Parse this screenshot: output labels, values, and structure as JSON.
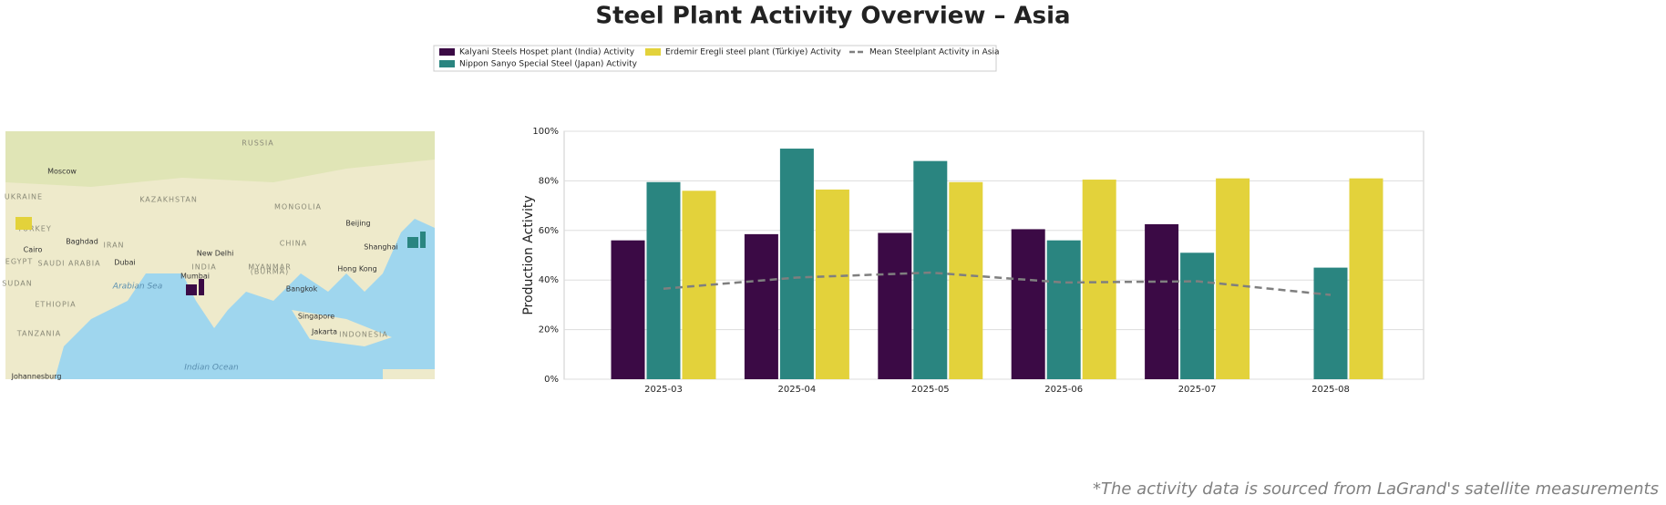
{
  "title": "Steel Plant Activity Overview – Asia",
  "note": "*The activity data is sourced from LaGrand's satellite measurements",
  "map": {
    "labels": [
      "RUSSIA",
      "Moscow",
      "UKRAINE",
      "KAZAKHSTAN",
      "MONGOLIA",
      "Beijing",
      "TURKEY",
      "Baghdad",
      "IRAN",
      "CHINA",
      "Shanghai",
      "Cairo",
      "EGYPT",
      "SAUDI ARABIA",
      "Dubai",
      "New Delhi",
      "INDIA",
      "MYANMAR",
      "(BURMA)",
      "Hong Kong",
      "Mumbai",
      "Arabian Sea",
      "Bangkok",
      "SUDAN",
      "ETHIOPIA",
      "Singapore",
      "Jakarta",
      "INDONESIA",
      "TANZANIA",
      "Indian Ocean",
      "Johannesburg"
    ]
  },
  "chart_data": {
    "type": "bar",
    "categories": [
      "2025-03",
      "2025-04",
      "2025-05",
      "2025-06",
      "2025-07",
      "2025-08"
    ],
    "y_label": "Production Activity",
    "ylim": [
      0,
      100
    ],
    "yticks": [
      {
        "value": 0,
        "label": "0%"
      },
      {
        "value": 20,
        "label": "20%"
      },
      {
        "value": 40,
        "label": "40%"
      },
      {
        "value": 60,
        "label": "60%"
      },
      {
        "value": 80,
        "label": "80%"
      },
      {
        "value": 100,
        "label": "100%"
      }
    ],
    "grid": true,
    "series": [
      {
        "name": "Kalyani Steels Hospet plant (India) Activity",
        "color": "#3b0a45",
        "values": [
          56,
          58.5,
          59,
          60.5,
          62.5,
          null
        ]
      },
      {
        "name": "Nippon Sanyo Special Steel (Japan) Activity",
        "color": "#2a8580",
        "values": [
          79.5,
          93,
          88,
          56,
          51,
          45
        ]
      },
      {
        "name": "Erdemir Eregli steel plant (Türkiye) Activity",
        "color": "#e3d23b",
        "values": [
          76,
          76.5,
          79.5,
          80.5,
          81,
          81
        ]
      },
      {
        "name": "Mean Steelplant Activity in Asia",
        "type": "line",
        "color": "#7f7f7f",
        "dashed": true,
        "values": [
          36.5,
          41,
          43,
          39,
          39.5,
          34
        ]
      }
    ]
  }
}
